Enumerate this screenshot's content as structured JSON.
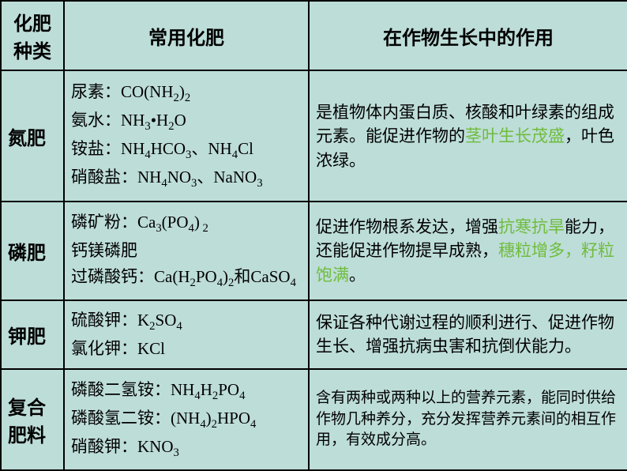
{
  "colors": {
    "background": "#bdddd8",
    "border": "#000000",
    "text": "#000000",
    "highlight": "#6fbc3c"
  },
  "header": {
    "col1": "化肥种类",
    "col2": "常用化肥",
    "col3": "在作物生长中的作用"
  },
  "rows": [
    {
      "type": "氮肥",
      "examples_html": "尿素：CO(NH<sub>2</sub>)<sub>2</sub><br>氨水：NH<sub>3</sub>•H<sub>2</sub>O<br>铵盐：NH<sub>4</sub>HCO<sub>3</sub>、NH<sub>4</sub>Cl<br>硝酸盐：NH<sub>4</sub>NO<sub>3</sub>、NaNO<sub>3</sub>",
      "effect_html": "是植物体内蛋白质、核酸和叶绿素的组成元素。能促进作物的<span class=\"hl\">茎叶生长茂盛</span>，叶色浓绿。"
    },
    {
      "type": "磷肥",
      "examples_html": "磷矿粉：Ca<sub>3</sub>(PO<sub>4</sub>)<sub>&nbsp;2</sub><br>钙镁磷肥<br>过磷酸钙：Ca(H<sub>2</sub>PO<sub>4</sub>)<sub>2</sub>和CaSO<sub>4</sub>",
      "effect_html": "促进作物根系发达，增强<span class=\"hl\">抗寒抗旱</span>能力，还能促进作物提早成熟，<span class=\"hl\">穗粒增多，籽粒饱满</span>。"
    },
    {
      "type": "钾肥",
      "examples_html": "硫酸钾：K<sub>2</sub>SO<sub>4</sub><br>氯化钾：KCl",
      "effect_html": "保证各种代谢过程的顺利进行、促进作物生长、增强抗病虫害和抗倒伏能力。"
    },
    {
      "type": "复合肥料",
      "examples_html": "磷酸二氢铵：NH<sub>4</sub>H<sub>2</sub>PO<sub>4</sub><br>磷酸氢二铵：(NH<sub>4</sub>)<sub>2</sub>HPO<sub>4</sub><br>硝酸钾：KNO<sub>3</sub>",
      "effect_html": "含有两种或两种以上的营养元素，能同时供给作物几种养分，充分发挥营养元素间的相互作用，有效成分高。",
      "effect_small": true
    }
  ]
}
